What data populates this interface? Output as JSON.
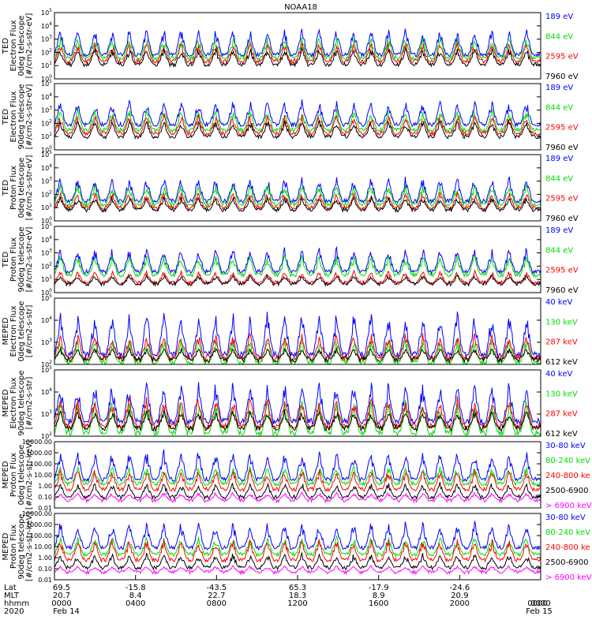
{
  "figure_title": "NOAA18",
  "chart_data": [
    {
      "type": "line",
      "panel_label": [
        "TED",
        "Electron Flux",
        "0deg telescope",
        "[#/cm2-s-str-eV]"
      ],
      "y_ticks": [
        "10",
        "10",
        "10",
        "10",
        "10",
        "10"
      ],
      "y_exps": [
        "0",
        "1",
        "2",
        "3",
        "4",
        "5"
      ],
      "ylim": [
        1,
        1000000
      ],
      "log": true,
      "series": [
        {
          "name": "7960 eV",
          "color": "#000000",
          "base": 1.3,
          "peak": 2.8
        },
        {
          "name": "2595 eV",
          "color": "#ff0000",
          "base": 1.6,
          "peak": 3.3
        },
        {
          "name": "844 eV",
          "color": "#00dd00",
          "base": 1.9,
          "peak": 3.8
        },
        {
          "name": "189 eV",
          "color": "#0000ff",
          "base": 2.2,
          "peak": 4.6
        }
      ]
    },
    {
      "type": "line",
      "panel_label": [
        "TED",
        "Electron Flux",
        "90deg telescope",
        "[#/cm2-s-str-eV]"
      ],
      "y_ticks": [
        "10",
        "10",
        "10",
        "10",
        "10",
        "10"
      ],
      "y_exps": [
        "0",
        "1",
        "2",
        "3",
        "4",
        "5"
      ],
      "ylim": [
        1,
        1000000
      ],
      "log": true,
      "series": [
        {
          "name": "7960 eV",
          "color": "#000000",
          "base": 1.2,
          "peak": 2.7
        },
        {
          "name": "2595 eV",
          "color": "#ff0000",
          "base": 1.5,
          "peak": 3.2
        },
        {
          "name": "844 eV",
          "color": "#00dd00",
          "base": 1.8,
          "peak": 3.7
        },
        {
          "name": "189 eV",
          "color": "#0000ff",
          "base": 2.3,
          "peak": 4.5
        }
      ]
    },
    {
      "type": "line",
      "panel_label": [
        "TED",
        "Proton Flux",
        "0deg telescope",
        "[#/cm2-s-str-eV]"
      ],
      "y_ticks": [
        "10",
        "10",
        "10",
        "10",
        "10",
        "10"
      ],
      "y_exps": [
        "0",
        "1",
        "2",
        "3",
        "4",
        "5"
      ],
      "ylim": [
        1,
        1000000
      ],
      "log": true,
      "series": [
        {
          "name": "7960 eV",
          "color": "#000000",
          "base": 1.0,
          "peak": 2.2
        },
        {
          "name": "2595 eV",
          "color": "#ff0000",
          "base": 1.2,
          "peak": 2.6
        },
        {
          "name": "844 eV",
          "color": "#00dd00",
          "base": 1.5,
          "peak": 3.4
        },
        {
          "name": "189 eV",
          "color": "#0000ff",
          "base": 1.8,
          "peak": 4.0
        }
      ]
    },
    {
      "type": "line",
      "panel_label": [
        "TED",
        "Proton Flux",
        "90deg telescope",
        "[#/cm2-s-str-eV]"
      ],
      "y_ticks": [
        "10",
        "10",
        "10",
        "10",
        "10",
        "10"
      ],
      "y_exps": [
        "0",
        "1",
        "2",
        "3",
        "4",
        "5"
      ],
      "ylim": [
        1,
        1000000
      ],
      "log": true,
      "series": [
        {
          "name": "7960 eV",
          "color": "#000000",
          "base": 0.8,
          "peak": 1.6
        },
        {
          "name": "2595 eV",
          "color": "#ff0000",
          "base": 0.9,
          "peak": 2.0
        },
        {
          "name": "844 eV",
          "color": "#00dd00",
          "base": 1.6,
          "peak": 3.4
        },
        {
          "name": "189 eV",
          "color": "#0000ff",
          "base": 1.9,
          "peak": 4.1
        }
      ]
    },
    {
      "type": "line",
      "panel_label": [
        "MEPED",
        "Electron Flux",
        "0deg telescope",
        "[#/cm2-s-str]"
      ],
      "y_ticks": [
        "10",
        "10",
        "10",
        "10"
      ],
      "y_exps": [
        "2",
        "3",
        "4",
        "5"
      ],
      "ylim": [
        100,
        1000000
      ],
      "log": true,
      "series": [
        {
          "name": "612 keV",
          "color": "#000000",
          "base": 2.3,
          "peak": 3.0
        },
        {
          "name": "287 keV",
          "color": "#ff0000",
          "base": 2.4,
          "peak": 3.9
        },
        {
          "name": "130 keV",
          "color": "#00dd00",
          "base": 2.1,
          "peak": 3.6
        },
        {
          "name": "40 keV",
          "color": "#0000ff",
          "base": 2.6,
          "peak": 5.2
        }
      ]
    },
    {
      "type": "line",
      "panel_label": [
        "MEPED",
        "Electron Flux",
        "90deg telescope",
        "[#/cm2-s-str]"
      ],
      "y_ticks": [
        "10",
        "10",
        "10",
        "10"
      ],
      "y_exps": [
        "2",
        "3",
        "4",
        "5"
      ],
      "ylim": [
        100,
        1000000
      ],
      "log": true,
      "series": [
        {
          "name": "612 keV",
          "color": "#000000",
          "base": 2.5,
          "peak": 3.6
        },
        {
          "name": "287 keV",
          "color": "#ff0000",
          "base": 2.6,
          "peak": 4.4
        },
        {
          "name": "130 keV",
          "color": "#00dd00",
          "base": 2.2,
          "peak": 4.2
        },
        {
          "name": "40 keV",
          "color": "#0000ff",
          "base": 2.9,
          "peak": 5.3
        }
      ]
    },
    {
      "type": "line",
      "panel_label": [
        "MEPED",
        "Proton Flux",
        "0deg telescope",
        "[#/cm2-s-str-keV]"
      ],
      "y_ticks": [
        "0.01",
        "0.10",
        "1.00",
        "10.00",
        "100.00",
        "1000.00",
        "10000.00"
      ],
      "ylim": [
        0.01,
        10000
      ],
      "log": true,
      "series": [
        {
          "name": "> 6900 keV",
          "color": "#ff00ff",
          "base": -1.3,
          "peak": -0.6
        },
        {
          "name": "2500-6900",
          "color": "#000000",
          "base": -1.0,
          "peak": 0.3
        },
        {
          "name": "240-800 ke",
          "color": "#ff0000",
          "base": -0.3,
          "peak": 1.5
        },
        {
          "name": "80-240 keV",
          "color": "#00dd00",
          "base": 0.2,
          "peak": 1.8
        },
        {
          "name": "30-80 keV",
          "color": "#0000ff",
          "base": 0.6,
          "peak": 3.2
        }
      ]
    },
    {
      "type": "line",
      "panel_label": [
        "MEPED",
        "Proton Flux",
        "90deg telescope",
        "[#/cm2-s-str-keV]"
      ],
      "y_ticks": [
        "0.01",
        "0.10",
        "1.00",
        "10.00",
        "100.00",
        "1000.00",
        "10000.00"
      ],
      "ylim": [
        0.01,
        10000
      ],
      "log": true,
      "series": [
        {
          "name": "> 6900 keV",
          "color": "#ff00ff",
          "base": -1.3,
          "peak": -0.7
        },
        {
          "name": "2500-6900",
          "color": "#000000",
          "base": -0.9,
          "peak": 0.4
        },
        {
          "name": "240-800 ke",
          "color": "#ff0000",
          "base": -0.2,
          "peak": 1.7
        },
        {
          "name": "80-240 keV",
          "color": "#00dd00",
          "base": 0.3,
          "peak": 1.9
        },
        {
          "name": "30-80 keV",
          "color": "#0000ff",
          "base": 0.9,
          "peak": 3.3
        }
      ]
    }
  ],
  "x_axis": {
    "row_labels": [
      "Lat",
      "MLT",
      "hhmm",
      "2020"
    ],
    "columns": [
      {
        "lat": "69.5",
        "mlt": "20.7",
        "hhmm": "0000",
        "date": "Feb 14"
      },
      {
        "lat": "-15.8",
        "mlt": "8.4",
        "hhmm": "0400",
        "date": ""
      },
      {
        "lat": "-43.5",
        "mlt": "22.7",
        "hhmm": "0800",
        "date": ""
      },
      {
        "lat": "65.3",
        "mlt": "18.3",
        "hhmm": "1200",
        "date": ""
      },
      {
        "lat": "-17.9",
        "mlt": "8.9",
        "hhmm": "1600",
        "date": ""
      },
      {
        "lat": "-24.6",
        "mlt": "20.9",
        "hhmm": "2000",
        "date": ""
      },
      {
        "lat": "",
        "mlt": "",
        "hhmm": "0000",
        "date": "Feb 15"
      }
    ]
  }
}
